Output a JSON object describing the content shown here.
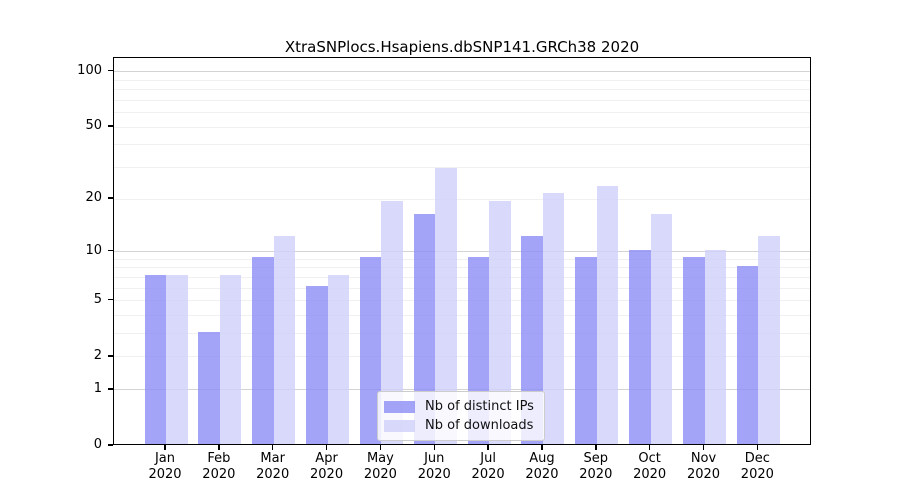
{
  "title": "XtraSNPlocs.Hsapiens.dbSNP141.GRCh38 2020",
  "chart_data": {
    "type": "bar",
    "title": "XtraSNPlocs.Hsapiens.dbSNP141.GRCh38 2020",
    "xlabel": "",
    "ylabel": "",
    "year": "2020",
    "categories": [
      "Jan",
      "Feb",
      "Mar",
      "Apr",
      "May",
      "Jun",
      "Jul",
      "Aug",
      "Sep",
      "Oct",
      "Nov",
      "Dec"
    ],
    "series": [
      {
        "name": "Nb of distinct IPs",
        "color": "rgba(140,140,245,0.8)",
        "values": [
          7,
          3,
          9,
          6,
          9,
          16,
          9,
          12,
          9,
          10,
          9,
          8
        ]
      },
      {
        "name": "Nb of downloads",
        "color": "rgba(208,208,250,0.8)",
        "values": [
          7,
          7,
          12,
          7,
          19,
          29,
          19,
          21,
          23,
          16,
          10,
          12
        ]
      }
    ],
    "yscale": "log1p",
    "ylim": [
      0,
      118.6
    ],
    "yticks": [
      0,
      1,
      2,
      5,
      10,
      20,
      50,
      100
    ],
    "major_gridlines": [
      1,
      10,
      100
    ],
    "minor_gridlines": [
      2,
      3,
      4,
      5,
      6,
      7,
      8,
      9,
      20,
      30,
      40,
      50,
      60,
      70,
      80,
      90
    ],
    "grid": true,
    "legend_position": "lower center"
  }
}
